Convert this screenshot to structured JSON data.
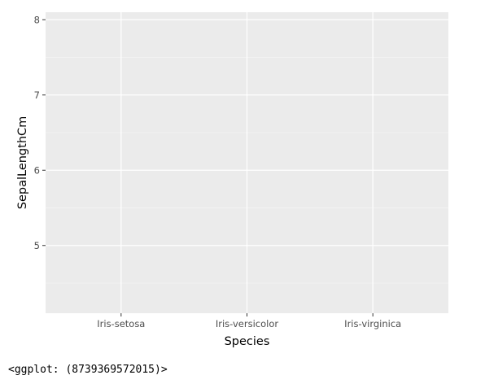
{
  "chart_data": {
    "type": "scatter",
    "title": "",
    "xlabel": "Species",
    "ylabel": "SepalLengthCm",
    "categories": [
      "Iris-setosa",
      "Iris-versicolor",
      "Iris-virginica"
    ],
    "yticks": [
      5,
      6,
      7,
      8
    ],
    "ylim": [
      4.1,
      8.1
    ],
    "grid": true,
    "legend": "none",
    "series": [],
    "colors": {
      "panel_background": "#ebebeb",
      "grid_major": "#ffffff",
      "grid_minor": "#f5f5f5",
      "tick_text": "#4d4d4d",
      "axis_title": "#000000"
    }
  },
  "output": {
    "repr_text": "<ggplot: (8739369572015)>"
  }
}
